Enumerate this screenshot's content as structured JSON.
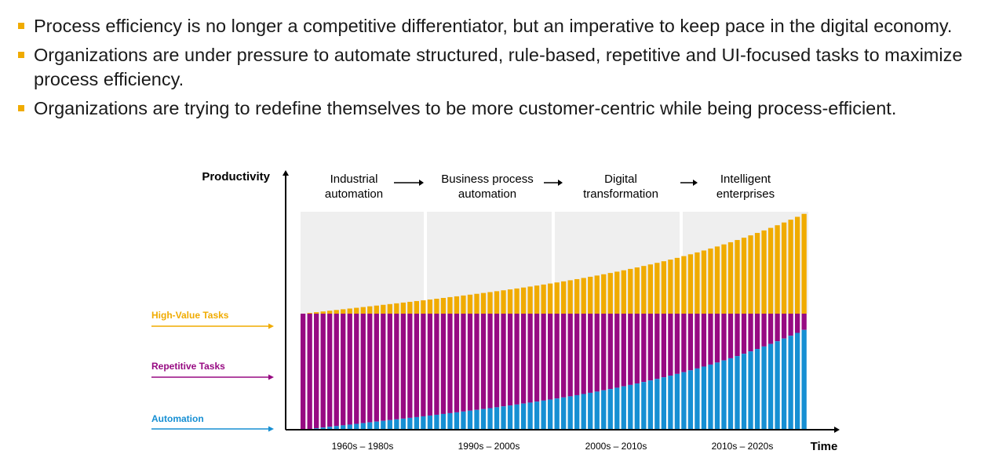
{
  "bullets": [
    "Process efficiency is no longer a competitive differentiator, but an imperative to keep pace in the digital economy.",
    "Organizations are under pressure to automate structured, rule-based, repetitive and UI-focused tasks to maximize process efficiency.",
    "Organizations are trying to redefine themselves to be more customer-centric while being process-efficient."
  ],
  "colors": {
    "bullet": "#f0ab00",
    "high_value": "#f0ab00",
    "repetitive": "#970a82",
    "automation": "#168fd3",
    "phase_background": "#efefef",
    "axis": "#000000"
  },
  "chart_data": {
    "type": "bar",
    "stacked": true,
    "ylabel": "Productivity",
    "xlabel": "Time",
    "phases": [
      [
        "Industrial",
        "automation"
      ],
      [
        "Business process",
        "automation"
      ],
      [
        "Digital",
        "transformation"
      ],
      [
        "Intelligent",
        "enterprises"
      ]
    ],
    "eras": [
      "1960s – 1980s",
      "1990s – 2000s",
      "2000s – 2010s",
      "2010s – 2020s"
    ],
    "series": [
      {
        "name": "Automation",
        "trend": "grows from 0 to 0.86 of the routine-task level, accelerating"
      },
      {
        "name": "Repetitive Tasks",
        "trend": "fills the remainder up to the constant routine-task level"
      },
      {
        "name": "High-Value Tasks",
        "trend": "grows from 0 above the routine-task level up to 0.86 of it, accelerating"
      }
    ],
    "bar_count": 76,
    "growth_max": 0.86,
    "grid": false,
    "legend": "left, with arrows"
  }
}
